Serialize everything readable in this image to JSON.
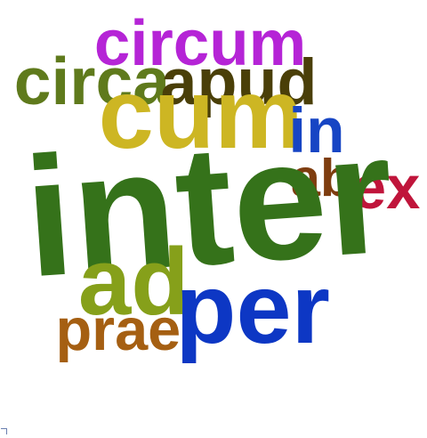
{
  "words": [
    {
      "id": "inter",
      "text": "inter",
      "color": "#35721a"
    },
    {
      "id": "cum",
      "text": "cum",
      "color": "#cdb623"
    },
    {
      "id": "circum",
      "text": "circum",
      "color": "#b524d6"
    },
    {
      "id": "circa",
      "text": "circa",
      "color": "#5f7a1c"
    },
    {
      "id": "apud",
      "text": "apud",
      "color": "#4a3f08"
    },
    {
      "id": "in",
      "text": "in",
      "color": "#1745c4"
    },
    {
      "id": "ab",
      "text": "ab",
      "color": "#7e3d0f"
    },
    {
      "id": "ex",
      "text": "ex",
      "color": "#c0153b"
    },
    {
      "id": "ad",
      "text": "ad",
      "color": "#86a01a"
    },
    {
      "id": "per",
      "text": "per",
      "color": "#0d37c4"
    },
    {
      "id": "prae",
      "text": "prae",
      "color": "#a55f12"
    }
  ]
}
